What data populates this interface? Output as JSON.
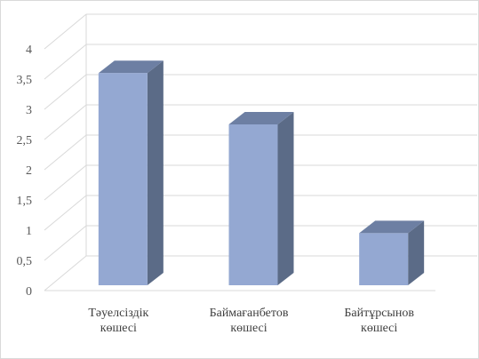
{
  "chart_data": {
    "type": "bar",
    "title": "",
    "xlabel": "",
    "ylabel": "",
    "categories": [
      [
        "Тәуелсіздік",
        "көшесі"
      ],
      [
        "Баймағанбетов",
        "көшесі"
      ],
      [
        "Байтұрсынов",
        "көшесі"
      ]
    ],
    "values": [
      3.6,
      2.75,
      0.95
    ],
    "ylim": [
      0,
      4
    ],
    "yticks": [
      "0",
      "0,5",
      "1",
      "1,5",
      "2",
      "2,5",
      "3",
      "3,5",
      "4"
    ],
    "tick_values": [
      0,
      0.5,
      1,
      1.5,
      2,
      2.5,
      3,
      3.5,
      4
    ],
    "grid": true,
    "legend": "none",
    "style": "3d-column",
    "colors": {
      "bar_front": "#94a8d2",
      "bar_side": "#5b6b87",
      "bar_top": "#6d7fa3",
      "grid": "#d9d9d9",
      "tick_text": "#595959"
    }
  }
}
